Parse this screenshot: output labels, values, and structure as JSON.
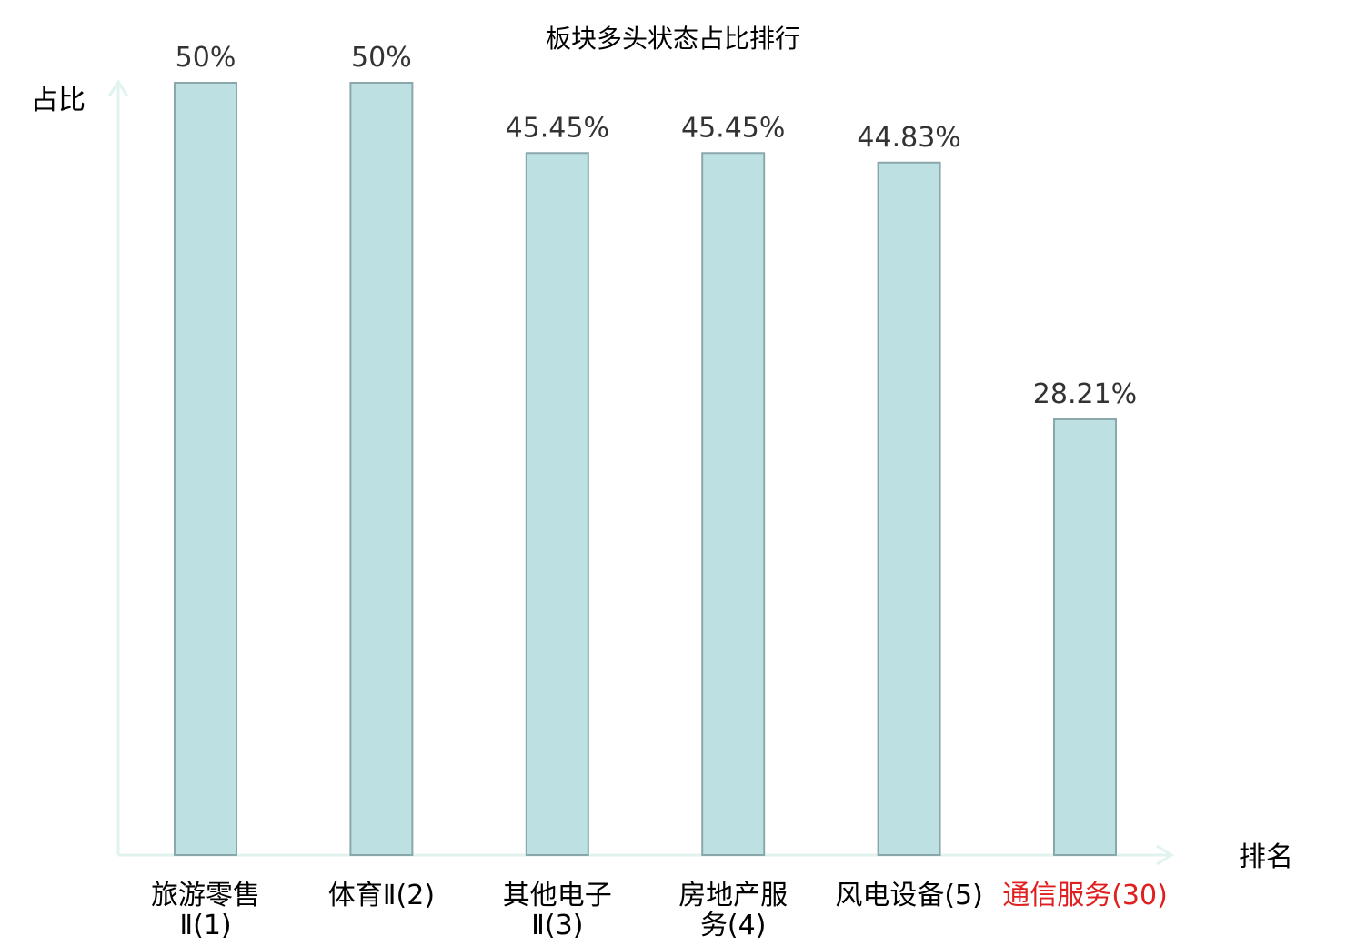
{
  "chart_data": {
    "type": "bar",
    "title": "板块多头状态占比排行",
    "ylabel": "占比",
    "xlabel": "排名",
    "ylim": [
      0,
      50
    ],
    "grid": false,
    "categories": [
      [
        "旅游零售",
        "Ⅱ(1)"
      ],
      [
        "体育Ⅱ(2)"
      ],
      [
        "其他电子",
        "Ⅱ(3)"
      ],
      [
        "房地产服",
        "务(4)"
      ],
      [
        "风电设备(5)"
      ],
      [
        "通信服务(30)"
      ]
    ],
    "values": [
      50,
      50,
      45.45,
      45.45,
      44.83,
      28.21
    ],
    "value_labels": [
      "50%",
      "50%",
      "45.45%",
      "45.45%",
      "44.83%",
      "28.21%"
    ],
    "highlight_index": 5,
    "colors": {
      "bar_fill": "#bde1e3",
      "bar_stroke": "#8aa8aa",
      "axis": "#e0f3ef",
      "text": "#333333",
      "highlight": "#e02020"
    }
  }
}
